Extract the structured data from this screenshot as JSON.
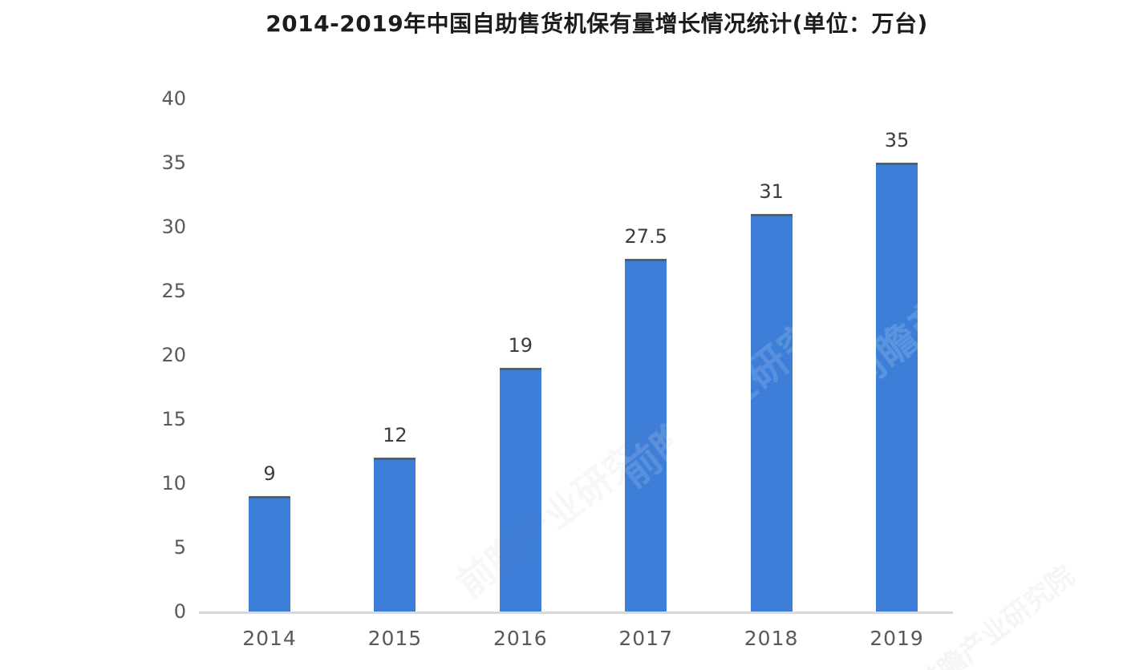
{
  "title": "2014-2019年中国自助售货机保有量增长情况统计(单位：万台)",
  "watermark": {
    "text": "前瞻产业研究院"
  },
  "chart_data": {
    "type": "bar",
    "title": "2014-2019年中国自助售货机保有量增长情况统计(单位：万台)",
    "categories": [
      "2014",
      "2015",
      "2016",
      "2017",
      "2018",
      "2019"
    ],
    "values": [
      9,
      12,
      19,
      27.5,
      31,
      35
    ],
    "value_labels": [
      "9",
      "12",
      "19",
      "27.5",
      "31",
      "35"
    ],
    "xlabel": "",
    "ylabel": "",
    "ylim": [
      0,
      40
    ],
    "yticks": [
      0,
      5,
      10,
      15,
      20,
      25,
      30,
      35,
      40
    ],
    "grid": false,
    "legend": false,
    "unit": "万台",
    "colors": {
      "bar_fill": "#3d7ed8",
      "bar_top_edge": "#50616e",
      "axis_line": "#d8d8d8",
      "tick_label": "#595959",
      "value_label": "#3c3c3c",
      "title": "#1c1c1c",
      "background": "#ffffff"
    }
  }
}
